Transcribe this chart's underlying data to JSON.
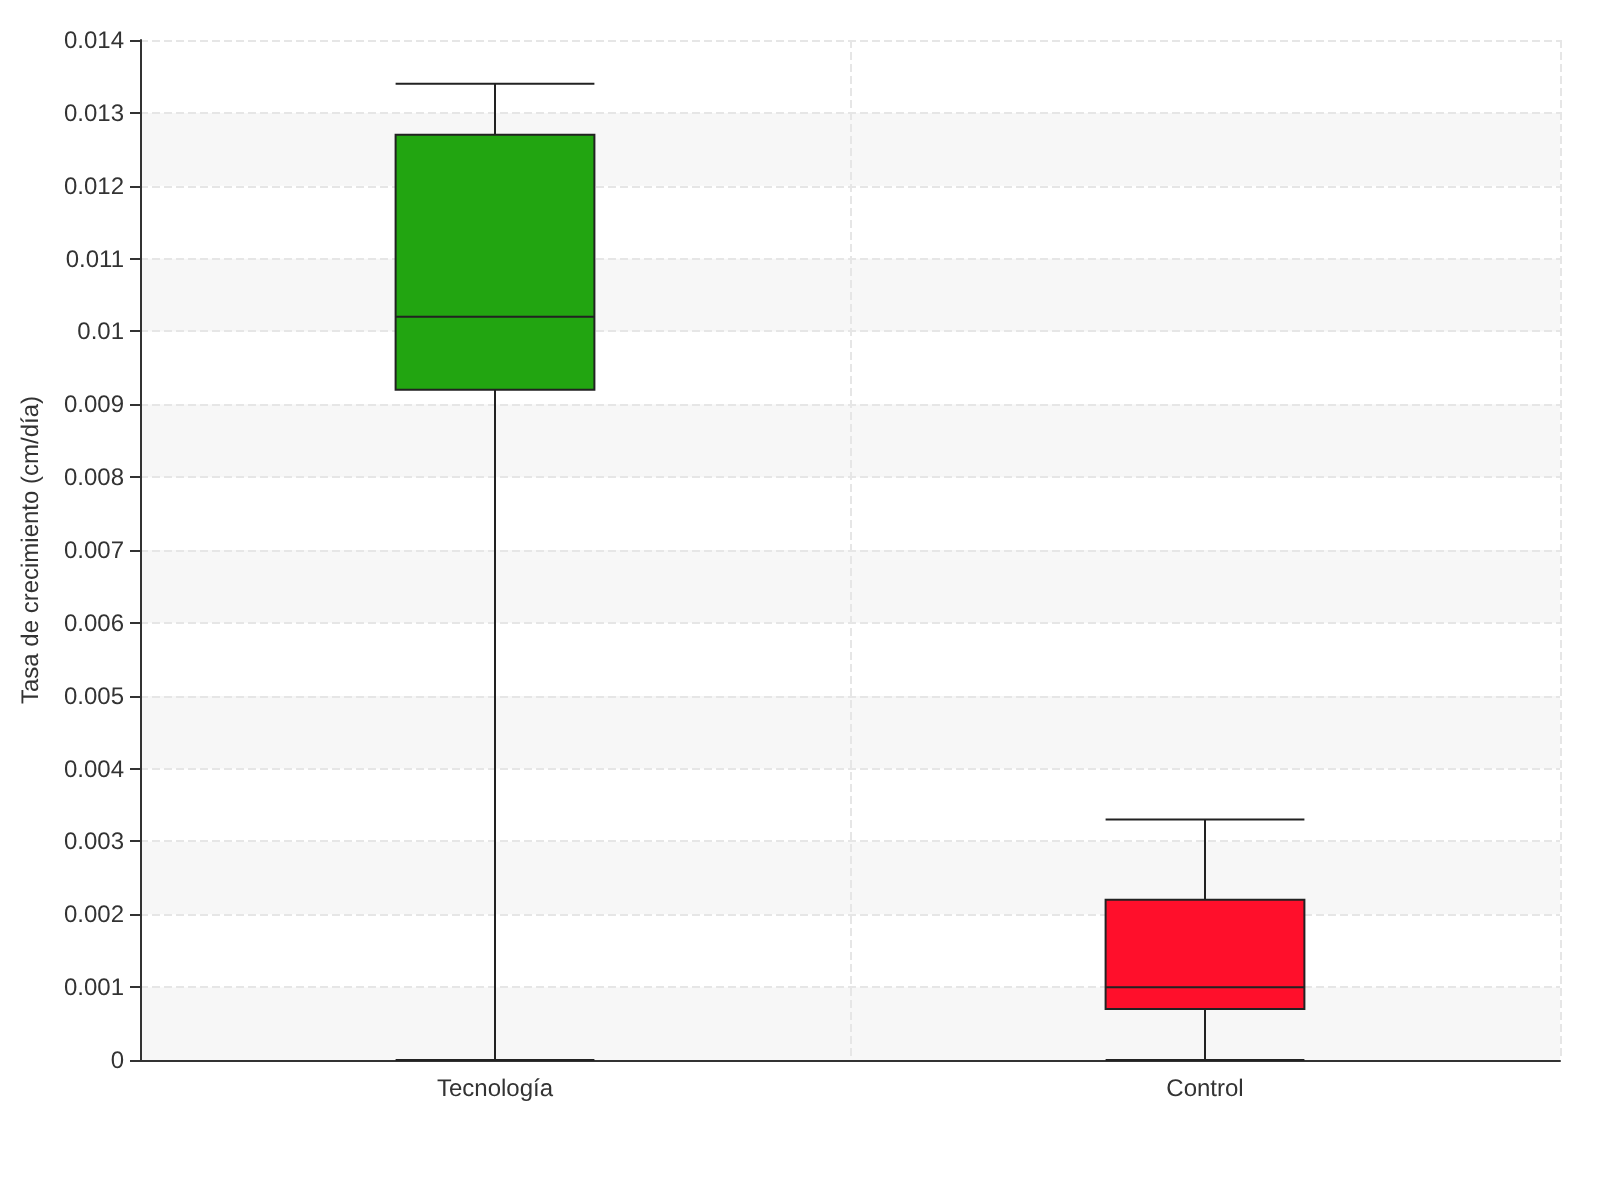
{
  "chart_data": {
    "type": "box",
    "ylabel": "Tasa de crecimiento (cm/día)",
    "categories": [
      "Tecnología",
      "Control"
    ],
    "boxes": [
      {
        "low": 0,
        "q1": 0.0092,
        "median": 0.0102,
        "q3": 0.0127,
        "high": 0.0134
      },
      {
        "low": 0,
        "q1": 0.0007,
        "median": 0.001,
        "q3": 0.0022,
        "high": 0.0033
      }
    ],
    "colors": [
      "#22a511",
      "#ff0f2b"
    ],
    "ylim": [
      0,
      0.014
    ],
    "yticks": [
      0,
      0.001,
      0.002,
      0.003,
      0.004,
      0.005,
      0.006,
      0.007,
      0.008,
      0.009,
      0.01,
      0.011,
      0.012,
      0.013,
      0.014
    ],
    "grid": true
  }
}
